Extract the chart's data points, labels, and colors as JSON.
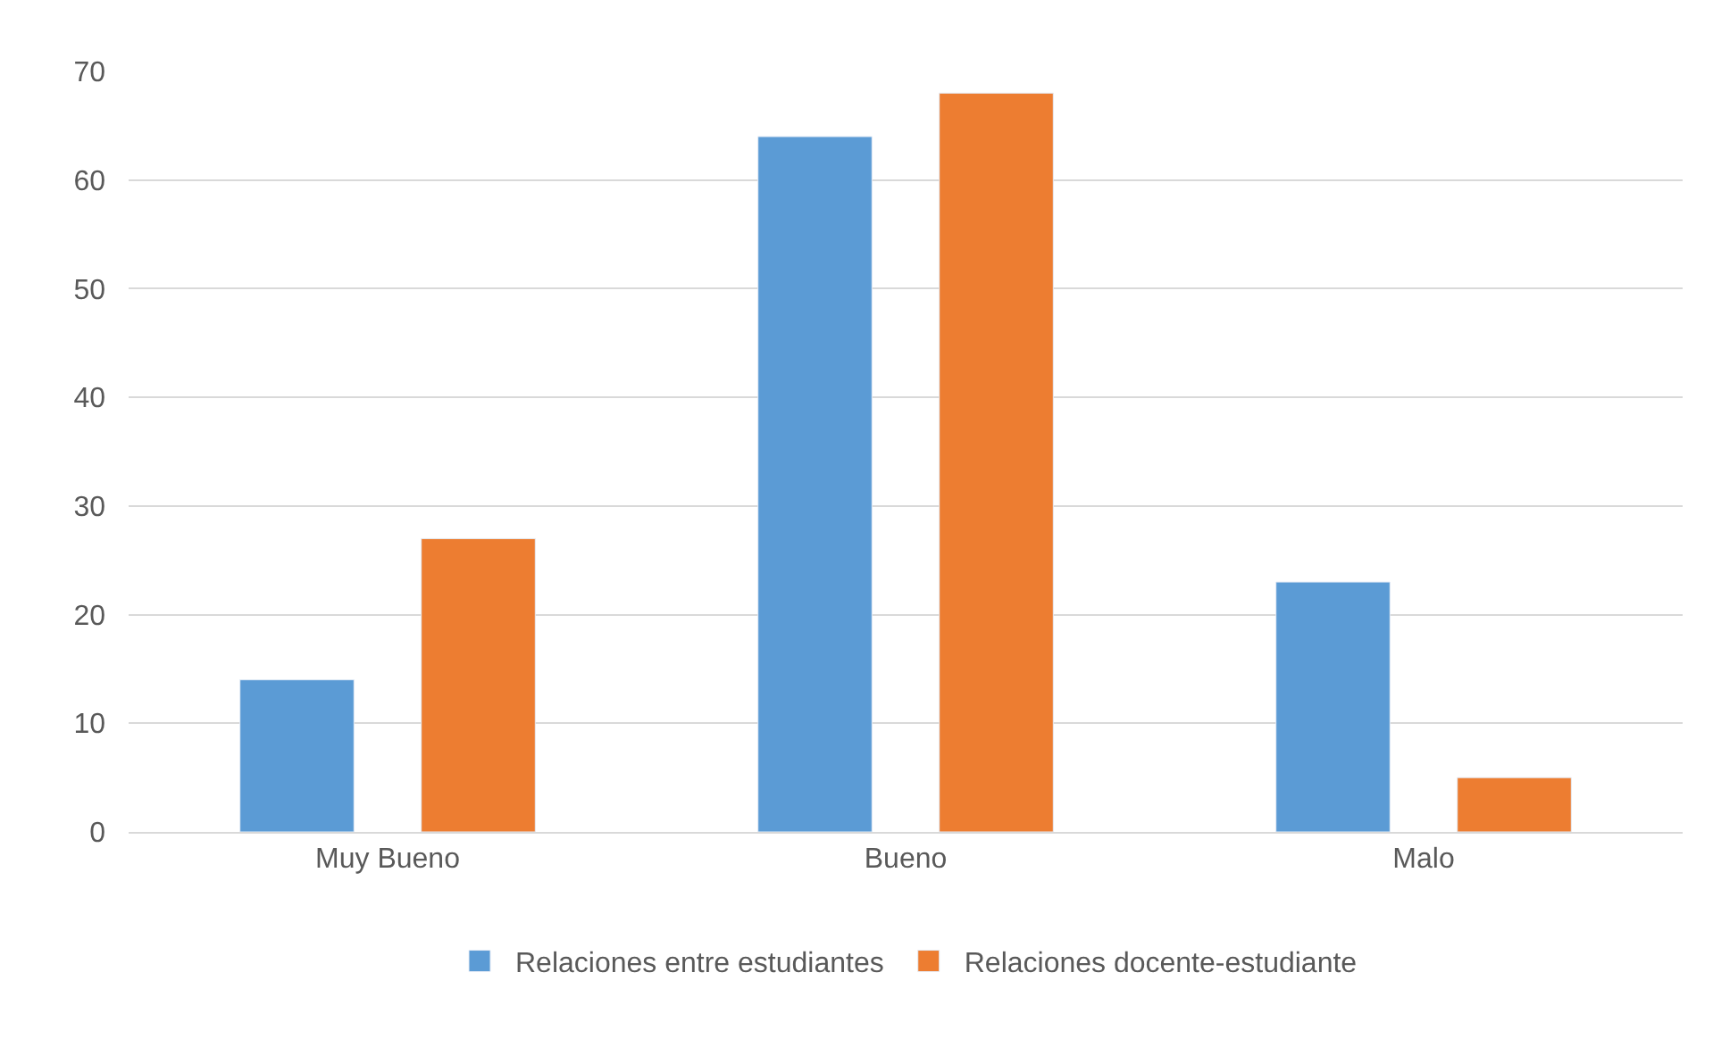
{
  "chart_data": {
    "type": "bar",
    "categories": [
      "Muy Bueno",
      "Bueno",
      "Malo"
    ],
    "series": [
      {
        "name": "Relaciones entre estudiantes",
        "color": "#5b9bd5",
        "values": [
          14,
          64,
          23
        ]
      },
      {
        "name": "Relaciones docente-estudiante",
        "color": "#ed7d31",
        "values": [
          27,
          68,
          5
        ]
      }
    ],
    "ylim": [
      0,
      70
    ],
    "yticks": [
      0,
      10,
      20,
      30,
      40,
      50,
      60,
      70
    ],
    "grid": "y",
    "legend": "bottom"
  }
}
